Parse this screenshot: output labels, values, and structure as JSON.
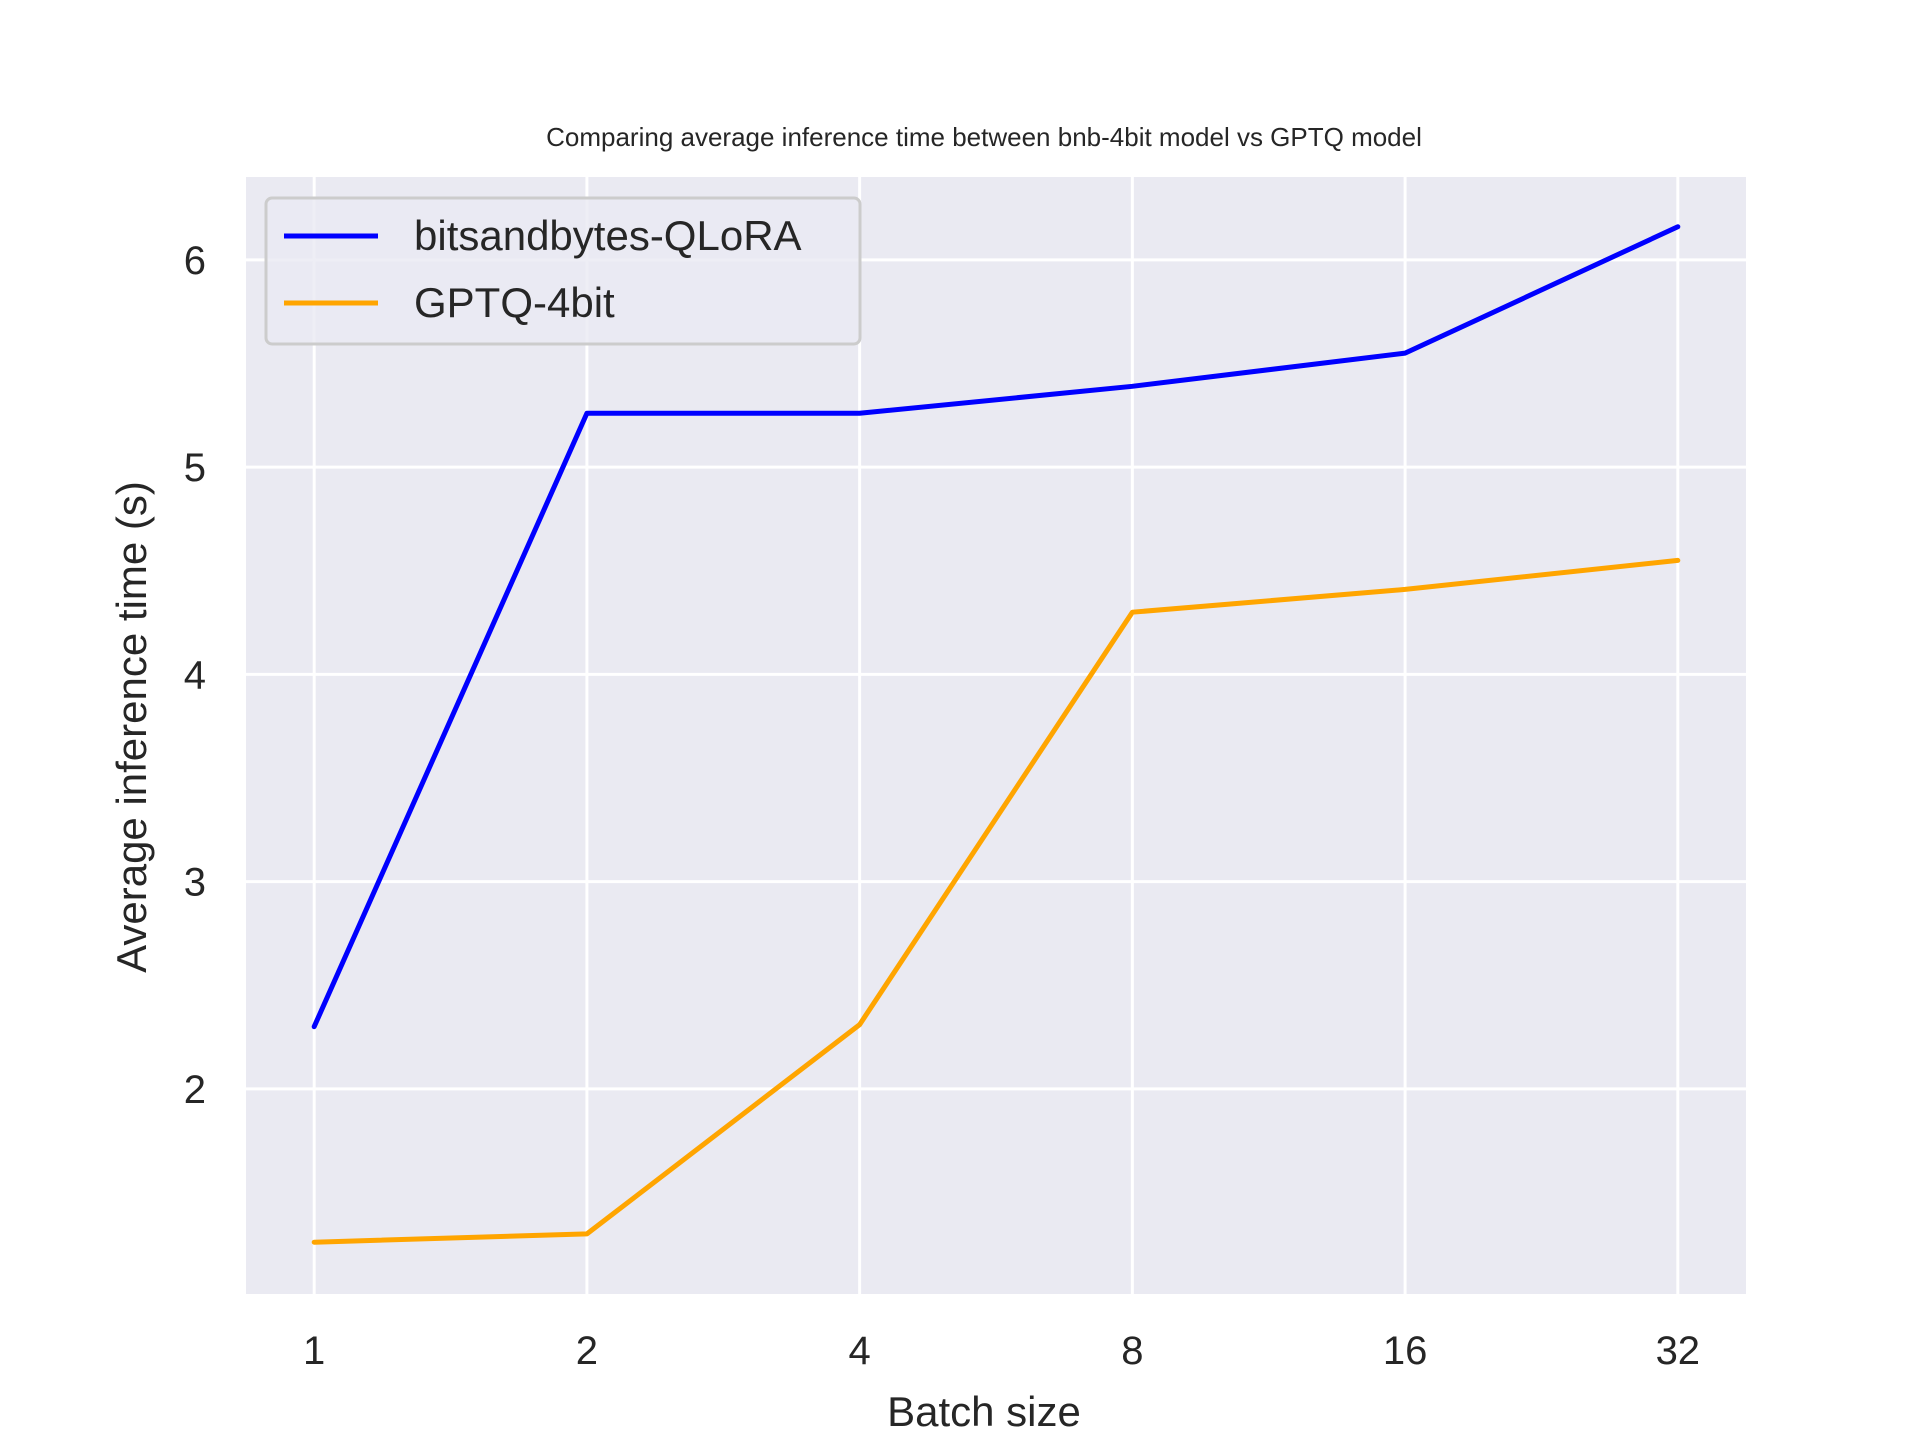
{
  "chart_data": {
    "type": "line",
    "title": "Comparing average inference time between bnb-4bit model vs GPTQ model",
    "xlabel": "Batch size",
    "ylabel": "Average inference time (s)",
    "categories": [
      "1",
      "2",
      "4",
      "8",
      "16",
      "32"
    ],
    "yticks": [
      "2",
      "3",
      "4",
      "5",
      "6"
    ],
    "ylim": [
      1.01,
      6.4
    ],
    "grid": true,
    "legend_position": "top-left",
    "background": "#EAEAF2",
    "series": [
      {
        "name": "bitsandbytes-QLoRA",
        "color": "#0000FF",
        "values": [
          2.3,
          5.26,
          5.26,
          5.39,
          5.55,
          6.16
        ]
      },
      {
        "name": "GPTQ-4bit",
        "color": "#FFA500",
        "values": [
          1.26,
          1.3,
          2.31,
          4.3,
          4.41,
          4.55
        ]
      }
    ]
  }
}
